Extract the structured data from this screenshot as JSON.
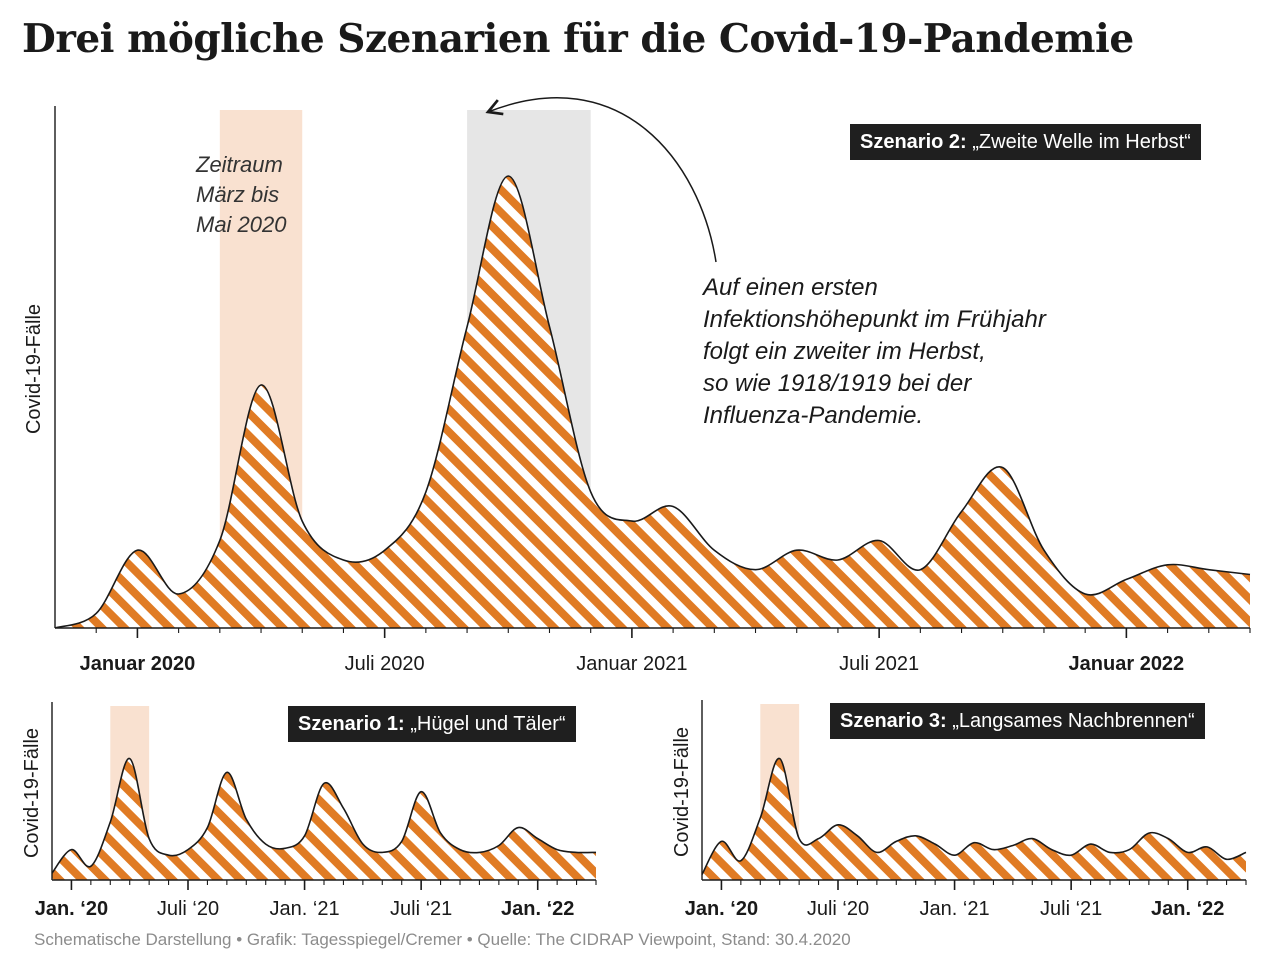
{
  "title": "Drei mögliche Szenarien für die Covid-19-Pandemie",
  "footer": "Schematische Darstellung • Grafik: Tagesspiegel/Cremer • Quelle: The CIDRAP Viewpoint, Stand: 30.4.2020",
  "colors": {
    "hatch": "#e07b24",
    "period": "#f9e1d0",
    "highlight": "#e6e6e6",
    "tag_bg": "#1f1f1f"
  },
  "chart_data": [
    {
      "type": "area",
      "scenario_label": "Szenario 2:",
      "scenario_name": "„Zweite Welle im Herbst“",
      "ylabel": "Covid-19-Fälle",
      "x_tick_labels": [
        "Januar 2020",
        "Juli 2020",
        "Januar 2021",
        "Juli 2021",
        "Januar 2022"
      ],
      "period_label": [
        "Zeitraum",
        "März bis",
        "Mai 2020"
      ],
      "annotation": [
        "Auf einen ersten",
        "Infektionshöhepunkt im Frühjahr",
        "folgt ein zweiter im Herbst,",
        "so wie 1918/1919 bei der",
        "Influenza-Pandemie."
      ],
      "period_shading": [
        "2020-03",
        "2020-05"
      ],
      "highlight_shading": [
        "2020-09",
        "2020-12"
      ],
      "x": [
        "2019-11",
        "2019-12",
        "2020-01",
        "2020-02",
        "2020-03",
        "2020-04",
        "2020-05",
        "2020-06",
        "2020-07",
        "2020-08",
        "2020-09",
        "2020-10",
        "2020-11",
        "2020-12",
        "2021-01",
        "2021-02",
        "2021-03",
        "2021-04",
        "2021-05",
        "2021-06",
        "2021-07",
        "2021-08",
        "2021-09",
        "2021-10",
        "2021-11",
        "2021-12",
        "2022-01",
        "2022-02",
        "2022-03",
        "2022-04"
      ],
      "values": [
        0,
        3,
        16,
        7,
        18,
        50,
        22,
        14,
        16,
        28,
        62,
        93,
        62,
        28,
        22,
        25,
        16,
        12,
        16,
        14,
        18,
        12,
        24,
        33,
        16,
        7,
        10,
        13,
        12,
        11
      ],
      "y_unit": "relative (schematic)"
    },
    {
      "type": "area",
      "scenario_label": "Szenario 1:",
      "scenario_name": "„Hügel und Täler“",
      "ylabel": "Covid-19-Fälle",
      "x_tick_labels": [
        "Jan. ‘20",
        "Juli ‘20",
        "Jan. ‘21",
        "Juli ‘21",
        "Jan. ‘22"
      ],
      "period_shading": [
        "2020-03",
        "2020-05"
      ],
      "x": [
        "2019-12",
        "2020-01",
        "2020-02",
        "2020-03",
        "2020-04",
        "2020-05",
        "2020-06",
        "2020-07",
        "2020-08",
        "2020-09",
        "2020-10",
        "2020-11",
        "2020-12",
        "2021-01",
        "2021-02",
        "2021-03",
        "2021-04",
        "2021-05",
        "2021-06",
        "2021-07",
        "2021-08",
        "2021-09",
        "2021-10",
        "2021-11",
        "2021-12",
        "2022-01",
        "2022-02",
        "2022-03",
        "2022-04"
      ],
      "values": [
        5,
        22,
        10,
        42,
        88,
        30,
        18,
        22,
        38,
        78,
        44,
        26,
        23,
        32,
        70,
        52,
        26,
        20,
        28,
        64,
        34,
        22,
        20,
        25,
        38,
        30,
        22,
        20,
        20
      ],
      "y_unit": "relative (schematic)"
    },
    {
      "type": "area",
      "scenario_label": "Szenario 3:",
      "scenario_name": "„Langsames Nachbrennen“",
      "ylabel": "Covid-19-Fälle",
      "x_tick_labels": [
        "Jan. ‘20",
        "Juli ‘20",
        "Jan. ‘21",
        "Juli ‘21",
        "Jan. ‘22"
      ],
      "period_shading": [
        "2020-03",
        "2020-05"
      ],
      "x": [
        "2019-12",
        "2020-01",
        "2020-02",
        "2020-03",
        "2020-04",
        "2020-05",
        "2020-06",
        "2020-07",
        "2020-08",
        "2020-09",
        "2020-10",
        "2020-11",
        "2020-12",
        "2021-01",
        "2021-02",
        "2021-03",
        "2021-04",
        "2021-05",
        "2021-06",
        "2021-07",
        "2021-08",
        "2021-09",
        "2021-10",
        "2021-11",
        "2021-12",
        "2022-01",
        "2022-02",
        "2022-03",
        "2022-04"
      ],
      "values": [
        4,
        28,
        14,
        45,
        88,
        30,
        30,
        40,
        32,
        20,
        28,
        32,
        26,
        18,
        27,
        22,
        25,
        30,
        22,
        18,
        26,
        20,
        22,
        34,
        30,
        20,
        24,
        15,
        20
      ],
      "y_unit": "relative (schematic)"
    }
  ]
}
